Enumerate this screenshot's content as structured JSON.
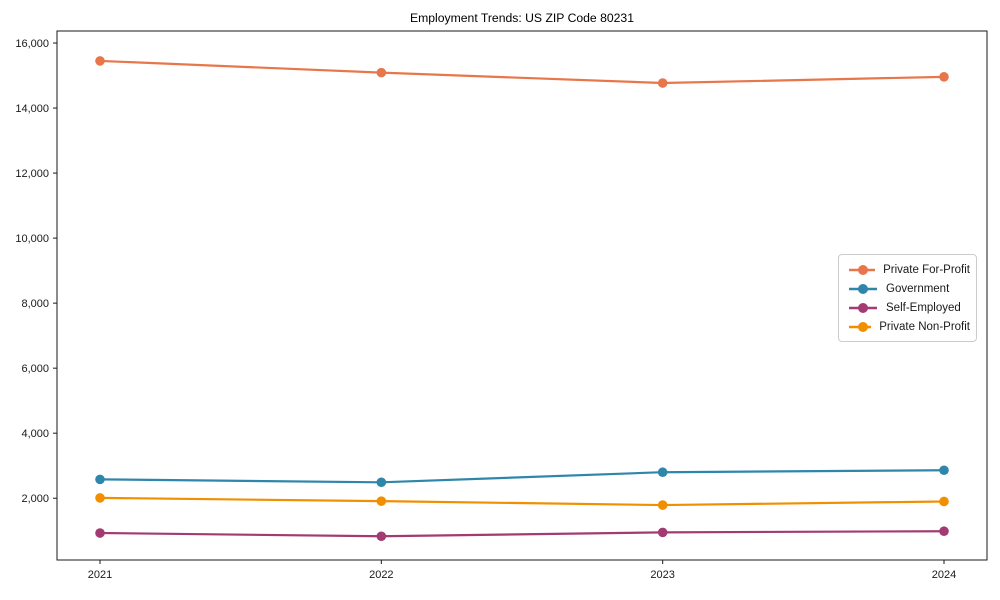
{
  "page": {
    "background_color": "#ffffff",
    "axis_color": "#1a1a1a",
    "tick_label_color": "#1a1a1a"
  },
  "chart_data": {
    "type": "line",
    "title": "Employment Trends: US ZIP Code 80231",
    "xlabel": "",
    "ylabel": "",
    "categories": [
      "2021",
      "2022",
      "2023",
      "2024"
    ],
    "series": [
      {
        "name": "Private For-Profit",
        "color": "#E8764B",
        "values": [
          15450,
          15090,
          14770,
          14960
        ]
      },
      {
        "name": "Government",
        "color": "#2E86AB",
        "values": [
          2580,
          2490,
          2800,
          2860
        ]
      },
      {
        "name": "Self-Employed",
        "color": "#A23B72",
        "values": [
          930,
          830,
          950,
          985
        ]
      },
      {
        "name": "Private Non-Profit",
        "color": "#F18F01",
        "values": [
          2010,
          1910,
          1790,
          1900
        ]
      }
    ],
    "ylim": [
      100,
      16370
    ],
    "yticks": [
      2000,
      4000,
      6000,
      8000,
      10000,
      12000,
      14000,
      16000
    ],
    "ytick_labels": [
      "2,000",
      "4,000",
      "6,000",
      "8,000",
      "10,000",
      "12,000",
      "14,000",
      "16,000"
    ],
    "grid": false,
    "legend_position": "center right",
    "marker": "circle"
  }
}
